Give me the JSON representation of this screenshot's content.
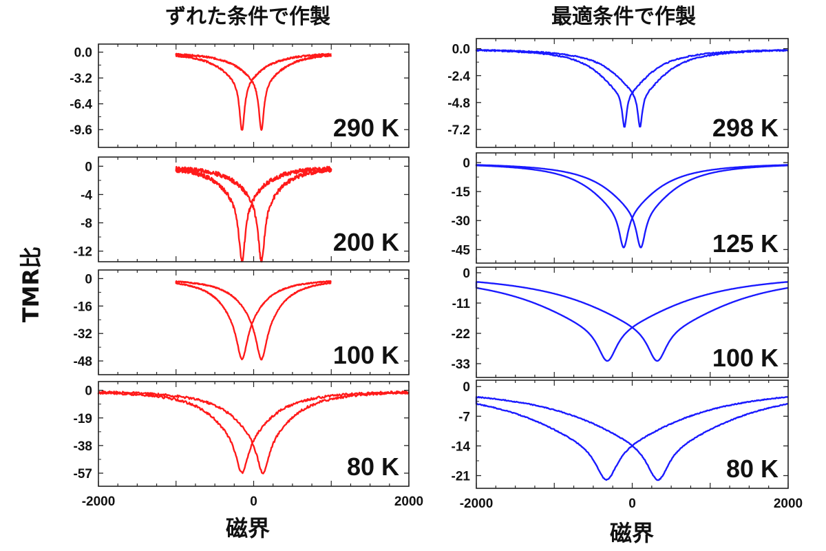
{
  "column_titles": [
    "ずれた条件で作製",
    "最適条件で作製"
  ],
  "xlabel": "磁界",
  "ylabel": "TMR比",
  "chart_data": [
    {
      "type": "line",
      "column": "ずれた条件で作製",
      "label": "290 K",
      "color": "#ff1a1a",
      "xlim": [
        -2000,
        2000
      ],
      "ylim": [
        -11.8,
        1.0
      ],
      "yticks": [
        0.0,
        -3.2,
        -6.4,
        -9.6
      ],
      "ytick_labels": [
        "0.0",
        "-3.2",
        "-6.4",
        "-9.6"
      ],
      "xticks": [
        -2000,
        0,
        2000
      ],
      "xtick_labels": [
        "-2000",
        "0",
        "2000"
      ],
      "x_data_range": [
        -1000,
        1000
      ],
      "shape": {
        "dips": [
          -150,
          100
        ],
        "min": -9.7,
        "dip_width": 40,
        "wing_width": 320,
        "wing_fraction": 0.35,
        "cross": -3.2
      },
      "noise": 0.1
    },
    {
      "type": "line",
      "column": "ずれた条件で作製",
      "label": "200 K",
      "color": "#ff1a1a",
      "xlim": [
        -2000,
        2000
      ],
      "ylim": [
        -13.5,
        1.3
      ],
      "yticks": [
        0,
        -4,
        -8,
        -12
      ],
      "ytick_labels": [
        "0",
        "-4",
        "-8",
        "-12"
      ],
      "xticks": [
        -2000,
        0,
        2000
      ],
      "xtick_labels": [
        "-2000",
        "0",
        "2000"
      ],
      "x_data_range": [
        -1000,
        1000
      ],
      "shape": {
        "dips": [
          -150,
          100
        ],
        "min": -13.5,
        "dip_width": 50,
        "wing_width": 300,
        "wing_fraction": 0.35,
        "cross": -4.5
      },
      "noise": 0.3
    },
    {
      "type": "line",
      "column": "ずれた条件で作製",
      "label": "100 K",
      "color": "#ff1a1a",
      "xlim": [
        -2000,
        2000
      ],
      "ylim": [
        -56,
        5
      ],
      "yticks": [
        0,
        -16,
        -32,
        -48
      ],
      "ytick_labels": [
        "0",
        "-16",
        "-32",
        "-48"
      ],
      "xticks": [
        -2000,
        0,
        2000
      ],
      "xtick_labels": [
        "-2000",
        "0",
        "2000"
      ],
      "x_data_range": [
        -1000,
        1000
      ],
      "shape": {
        "dips": [
          -150,
          100
        ],
        "min": -47,
        "dip_width": 80,
        "wing_width": 300,
        "wing_fraction": 0.5,
        "cross": -20
      },
      "noise": 0.3
    },
    {
      "type": "line",
      "column": "ずれた条件で作製",
      "label": "80 K",
      "color": "#ff1a1a",
      "xlim": [
        -2000,
        2000
      ],
      "ylim": [
        -66,
        6
      ],
      "yticks": [
        0,
        -19,
        -38,
        -57
      ],
      "ytick_labels": [
        "0",
        "-19",
        "-38",
        "-57"
      ],
      "xticks": [
        -2000,
        0,
        2000
      ],
      "xtick_labels": [
        "-2000",
        "0",
        "2000"
      ],
      "x_data_range": [
        -2000,
        2000
      ],
      "shape": {
        "dips": [
          -150,
          120
        ],
        "min": -57,
        "dip_width": 90,
        "wing_width": 420,
        "wing_fraction": 0.55,
        "cross": -25
      },
      "noise": 0.8
    },
    {
      "type": "line",
      "column": "最適条件で作製",
      "label": "298 K",
      "color": "#1a1aff",
      "xlim": [
        -2000,
        2000
      ],
      "ylim": [
        -8.8,
        0.9
      ],
      "yticks": [
        0.0,
        -2.4,
        -4.8,
        -7.2
      ],
      "ytick_labels": [
        "0.0",
        "-2.4",
        "-4.8",
        "-7.2"
      ],
      "xticks": [
        -2000,
        0,
        2000
      ],
      "xtick_labels": [
        "-2000",
        "0",
        "2000"
      ],
      "x_data_range": [
        -2000,
        2000
      ],
      "shape": {
        "dips": [
          -100,
          100
        ],
        "min": -7.0,
        "dip_width": 35,
        "wing_width": 380,
        "wing_fraction": 0.55,
        "cross": -2.9
      },
      "noise": 0.05
    },
    {
      "type": "line",
      "column": "最適条件で作製",
      "label": "125 K",
      "color": "#1a1aff",
      "xlim": [
        -2000,
        2000
      ],
      "ylim": [
        -52,
        5
      ],
      "yticks": [
        0,
        -15,
        -30,
        -45
      ],
      "ytick_labels": [
        "0",
        "-15",
        "-30",
        "-45"
      ],
      "xticks": [
        -2000,
        0,
        2000
      ],
      "xtick_labels": [
        "-2000",
        "0",
        "2000"
      ],
      "x_data_range": [
        -2000,
        2000
      ],
      "shape": {
        "dips": [
          -110,
          110
        ],
        "min": -44,
        "dip_width": 70,
        "wing_width": 480,
        "wing_fraction": 0.55,
        "cross": -20
      },
      "noise": 0
    },
    {
      "type": "line",
      "column": "最適条件で作製",
      "label": "100 K",
      "color": "#1a1aff",
      "xlim": [
        -2000,
        2000
      ],
      "ylim": [
        -38,
        2
      ],
      "yticks": [
        0,
        -11,
        -22,
        -33
      ],
      "ytick_labels": [
        "0",
        "-11",
        "-22",
        "-33"
      ],
      "xticks": [
        -2000,
        0,
        2000
      ],
      "xtick_labels": [
        "-2000",
        "0",
        "2000"
      ],
      "x_data_range": [
        -2000,
        2000
      ],
      "shape": {
        "dips": [
          -320,
          320
        ],
        "min": -32,
        "dip_width": 150,
        "wing_width": 1050,
        "wing_fraction": 0.6,
        "cross": -20
      },
      "noise": 0
    },
    {
      "type": "line",
      "column": "最適条件で作製",
      "label": "80 K",
      "color": "#1a1aff",
      "xlim": [
        -2000,
        2000
      ],
      "ylim": [
        -24,
        1.5
      ],
      "yticks": [
        0,
        -7,
        -14,
        -21
      ],
      "ytick_labels": [
        "0",
        "-7",
        "-14",
        "-21"
      ],
      "xticks": [
        -2000,
        0,
        2000
      ],
      "xtick_labels": [
        "-2000",
        "0",
        "2000"
      ],
      "x_data_range": [
        -2000,
        2000
      ],
      "shape": {
        "dips": [
          -330,
          330
        ],
        "min": -22,
        "dip_width": 170,
        "wing_width": 1100,
        "wing_fraction": 0.6,
        "cross": -15
      },
      "noise": 0.1
    }
  ]
}
